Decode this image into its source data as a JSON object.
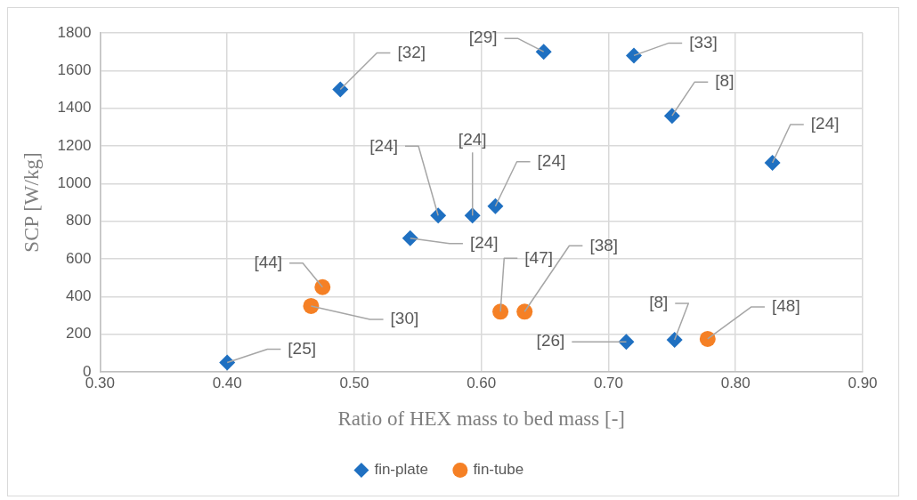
{
  "chart_data": {
    "type": "scatter",
    "xlabel": "Ratio of HEX mass to bed mass [-]",
    "ylabel": "SCP [W/kg]",
    "xlim": [
      0.3,
      0.9
    ],
    "xticks": [
      {
        "value": 0.3,
        "label": "0.30"
      },
      {
        "value": 0.4,
        "label": "0.40"
      },
      {
        "value": 0.5,
        "label": "0.50"
      },
      {
        "value": 0.6,
        "label": "0.60"
      },
      {
        "value": 0.7,
        "label": "0.70"
      },
      {
        "value": 0.8,
        "label": "0.80"
      },
      {
        "value": 0.9,
        "label": "0.90"
      }
    ],
    "ylim": [
      0,
      1800
    ],
    "yticks": [
      0,
      200,
      400,
      600,
      800,
      1000,
      1200,
      1400,
      1600,
      1800
    ],
    "grid": true,
    "legend": "bottom",
    "series": [
      {
        "name": "fin-plate",
        "color": "#1f70c1",
        "marker": "diamond",
        "x": [
          0.4,
          0.489,
          0.649,
          0.72,
          0.75,
          0.829,
          0.566,
          0.593,
          0.611,
          0.544,
          0.714,
          0.752
        ],
        "values": [
          50,
          1500,
          1700,
          1680,
          1360,
          1110,
          830,
          830,
          880,
          710,
          160,
          170
        ]
      },
      {
        "name": "fin-tube",
        "color": "#f58025",
        "marker": "circle",
        "x": [
          0.475,
          0.466,
          0.615,
          0.634,
          0.778
        ],
        "values": [
          450,
          350,
          320,
          320,
          175
        ]
      }
    ],
    "annotations": [
      {
        "text": "[25]",
        "x": 0.4,
        "y": 50
      },
      {
        "text": "[32]",
        "x": 0.489,
        "y": 1500
      },
      {
        "text": "[29]",
        "x": 0.649,
        "y": 1700
      },
      {
        "text": "[33]",
        "x": 0.72,
        "y": 1680
      },
      {
        "text": "[8]",
        "x": 0.75,
        "y": 1360
      },
      {
        "text": "[24]",
        "x": 0.829,
        "y": 1110
      },
      {
        "text": "[24]",
        "x": 0.566,
        "y": 830
      },
      {
        "text": "[24]",
        "x": 0.593,
        "y": 830
      },
      {
        "text": "[24]",
        "x": 0.611,
        "y": 880
      },
      {
        "text": "[24]",
        "x": 0.544,
        "y": 710
      },
      {
        "text": "[26]",
        "x": 0.714,
        "y": 160
      },
      {
        "text": "[8]",
        "x": 0.752,
        "y": 170
      },
      {
        "text": "[44]",
        "x": 0.475,
        "y": 450
      },
      {
        "text": "[30]",
        "x": 0.466,
        "y": 350
      },
      {
        "text": "[47]",
        "x": 0.615,
        "y": 320
      },
      {
        "text": "[38]",
        "x": 0.634,
        "y": 320
      },
      {
        "text": "[48]",
        "x": 0.778,
        "y": 175
      }
    ]
  }
}
